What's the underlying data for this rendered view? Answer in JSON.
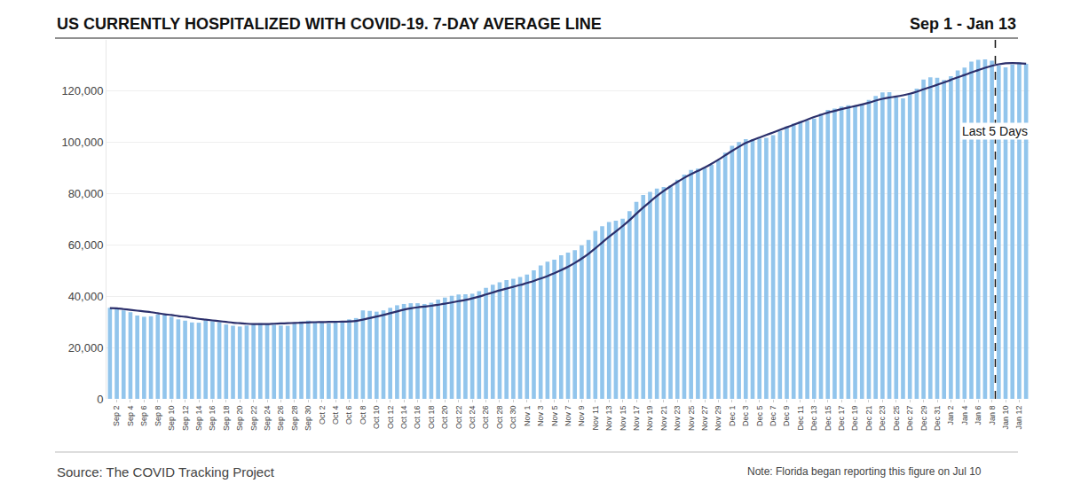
{
  "chart_data": {
    "type": "bar",
    "title": "US CURRENTLY HOSPITALIZED WITH COVID-19. 7-DAY AVERAGE LINE",
    "subtitle": "Sep 1 - Jan 13",
    "source": "Source: The COVID Tracking Project",
    "note": "Note: Florida began reporting this figure on Jul 10",
    "categories": [
      null,
      "Sep 2",
      null,
      "Sep 4",
      null,
      "Sep 6",
      null,
      "Sep 8",
      null,
      "Sep 10",
      null,
      "Sep 12",
      null,
      "Sep 14",
      null,
      "Sep 16",
      null,
      "Sep 18",
      null,
      "Sep 20",
      null,
      "Sep 22",
      null,
      "Sep 24",
      null,
      "Sep 26",
      null,
      "Sep 28",
      null,
      "Sep 30",
      null,
      "Oct 2",
      null,
      "Oct 4",
      null,
      "Oct 6",
      null,
      "Oct 8",
      null,
      "Oct 10",
      null,
      "Oct 12",
      null,
      "Oct 14",
      null,
      "Oct 16",
      null,
      "Oct 18",
      null,
      "Oct 20",
      null,
      "Oct 22",
      null,
      "Oct 24",
      null,
      "Oct 26",
      null,
      "Oct 28",
      null,
      "Oct 30",
      null,
      "Nov 1",
      null,
      "Nov 3",
      null,
      "Nov 5",
      null,
      "Nov 7",
      null,
      "Nov 9",
      null,
      "Nov 11",
      null,
      "Nov 13",
      null,
      "Nov 15",
      null,
      "Nov 17",
      null,
      "Nov 19",
      null,
      "Nov 21",
      null,
      "Nov 23",
      null,
      "Nov 25",
      null,
      "Nov 27",
      null,
      "Nov 29",
      null,
      "Dec 1",
      null,
      "Dec 3",
      null,
      "Dec 5",
      null,
      "Dec 7",
      null,
      "Dec 9",
      null,
      "Dec 11",
      null,
      "Dec 13",
      null,
      "Dec 15",
      null,
      "Dec 17",
      null,
      "Dec 19",
      null,
      "Dec 21",
      null,
      "Dec 23",
      null,
      "Dec 25",
      null,
      "Dec 27",
      null,
      "Dec 29",
      null,
      "Dec 31",
      null,
      "Jan 2",
      null,
      "Jan 4",
      null,
      "Jan 6",
      null,
      "Jan 8",
      null,
      "Jan 10",
      null,
      "Jan 12",
      null
    ],
    "series": [
      {
        "type": "bar",
        "color": "#92c5ec",
        "values": [
          35500,
          35200,
          34500,
          33800,
          32500,
          32000,
          32200,
          32900,
          32800,
          32000,
          31000,
          30500,
          29800,
          29700,
          30500,
          30300,
          29800,
          29000,
          28500,
          28200,
          28600,
          29300,
          29500,
          29200,
          28900,
          28600,
          28500,
          29300,
          30200,
          30500,
          30000,
          29800,
          29500,
          29700,
          30200,
          31000,
          31500,
          34500,
          34300,
          34000,
          34500,
          35500,
          36500,
          37000,
          37300,
          37300,
          37000,
          37500,
          38700,
          39500,
          40200,
          40700,
          40800,
          41000,
          42000,
          43300,
          44500,
          45500,
          46300,
          46800,
          47500,
          48500,
          50100,
          52000,
          53500,
          54300,
          56000,
          57000,
          58000,
          59900,
          62000,
          65500,
          67300,
          69000,
          69500,
          70300,
          73200,
          76800,
          79500,
          80700,
          82000,
          82600,
          83200,
          85500,
          87500,
          89300,
          89800,
          90000,
          91300,
          93000,
          96000,
          98700,
          100200,
          101300,
          101200,
          101500,
          101800,
          102800,
          104500,
          106200,
          107300,
          108100,
          108500,
          109300,
          111200,
          112700,
          113200,
          114000,
          114500,
          114300,
          115000,
          116600,
          118100,
          119500,
          119600,
          117500,
          117200,
          118800,
          121000,
          124500,
          125400,
          125200,
          124400,
          125800,
          128100,
          129200,
          131500,
          132200,
          132400,
          131900,
          130000,
          129300,
          130400,
          131200,
          130700
        ]
      },
      {
        "type": "line",
        "color": "#2b2f6b",
        "values": [
          35400,
          35300,
          35000,
          34700,
          34400,
          34100,
          33800,
          33400,
          33000,
          32700,
          32300,
          32000,
          31600,
          31200,
          30900,
          30600,
          30300,
          30000,
          29700,
          29500,
          29300,
          29200,
          29200,
          29200,
          29300,
          29400,
          29500,
          29600,
          29700,
          29800,
          29900,
          29950,
          30000,
          30050,
          30100,
          30200,
          30400,
          30900,
          31500,
          32100,
          32700,
          33400,
          34100,
          34800,
          35300,
          35700,
          36000,
          36300,
          36700,
          37100,
          37600,
          38100,
          38600,
          39200,
          39900,
          40700,
          41500,
          42300,
          43000,
          43700,
          44400,
          45200,
          46000,
          46900,
          47900,
          49000,
          50200,
          51500,
          53000,
          54700,
          56600,
          58700,
          61000,
          63200,
          65300,
          67400,
          69700,
          72200,
          74600,
          76900,
          79100,
          81100,
          82900,
          84600,
          86200,
          87600,
          88900,
          90200,
          91700,
          93300,
          95000,
          96700,
          98300,
          99800,
          100900,
          101900,
          102900,
          103900,
          104900,
          105900,
          106900,
          107900,
          108900,
          109900,
          110800,
          111600,
          112300,
          113000,
          113600,
          114200,
          114800,
          115500,
          116300,
          117000,
          117500,
          117900,
          118400,
          119000,
          119800,
          120700,
          121600,
          122500,
          123400,
          124400,
          125400,
          126300,
          127300,
          128200,
          129100,
          129900,
          130500,
          130900,
          131000,
          130900,
          130700
        ]
      }
    ],
    "annotations": [
      {
        "text": "Last 5 Days",
        "last_n": 5,
        "line_style": "dashed"
      }
    ],
    "ylim": [
      0,
      140000
    ],
    "yticks": [
      0,
      {
        "value": 20000,
        "label": "20,000"
      },
      {
        "value": 40000,
        "label": "40,000"
      },
      {
        "value": 60000,
        "label": "60,000"
      },
      {
        "value": 80000,
        "label": "80,000"
      },
      {
        "value": 100000,
        "label": "100,000"
      },
      {
        "value": 120000,
        "label": "120,000"
      }
    ],
    "grid": true
  }
}
